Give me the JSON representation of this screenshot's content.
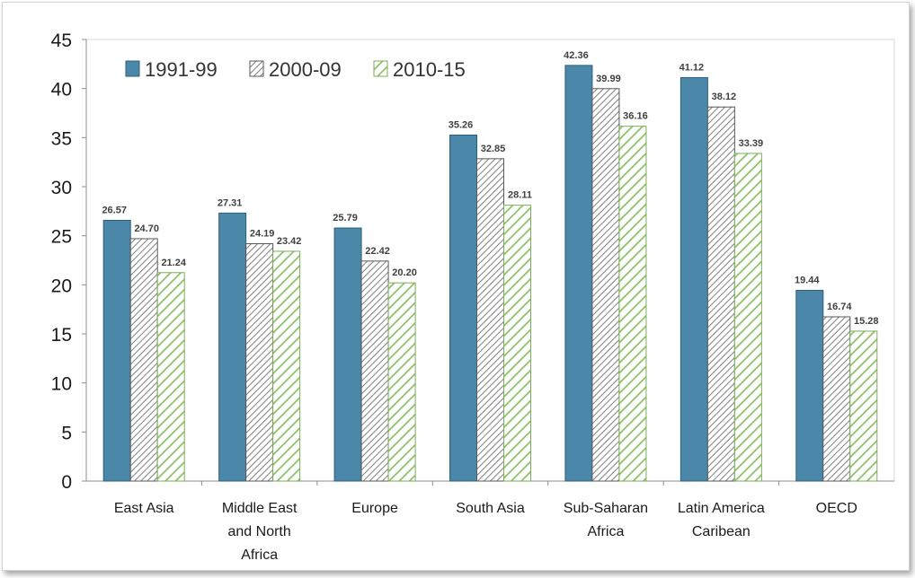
{
  "chart_data": {
    "type": "bar",
    "title": "",
    "xlabel": "",
    "ylabel": "",
    "ylim": [
      0,
      45
    ],
    "yticks": [
      0,
      5,
      10,
      15,
      20,
      25,
      30,
      35,
      40,
      45
    ],
    "grid": false,
    "legend_position": "top-left",
    "categories": [
      [
        "East Asia"
      ],
      [
        "Middle East",
        "and North",
        "Africa"
      ],
      [
        "Europe"
      ],
      [
        "South Asia"
      ],
      [
        "Sub-Saharan",
        "Africa"
      ],
      [
        "Latin America",
        "Caribean"
      ],
      [
        "OECD"
      ]
    ],
    "series": [
      {
        "name": "1991-99",
        "color": "#4a87a8",
        "pattern": "solid",
        "values": [
          26.57,
          27.31,
          25.79,
          35.26,
          42.36,
          41.12,
          19.44
        ],
        "labels": [
          "26.57",
          "27.31",
          "25.79",
          "35.26",
          "42.36",
          "41.12",
          "19.44"
        ]
      },
      {
        "name": "2000-09",
        "color": "#7f7f7f",
        "pattern": "hatch-gray",
        "values": [
          24.7,
          24.19,
          22.42,
          32.85,
          39.99,
          38.12,
          16.74
        ],
        "labels": [
          "24.70",
          "24.19",
          "22.42",
          "32.85",
          "39.99",
          "38.12",
          "16.74"
        ]
      },
      {
        "name": "2010-15",
        "color": "#8cc068",
        "pattern": "hatch-green",
        "values": [
          21.24,
          23.42,
          20.2,
          28.11,
          36.16,
          33.39,
          15.28
        ],
        "labels": [
          "21.24",
          "23.42",
          "20.20",
          "28.11",
          "36.16",
          "33.39",
          "15.28"
        ]
      }
    ]
  }
}
